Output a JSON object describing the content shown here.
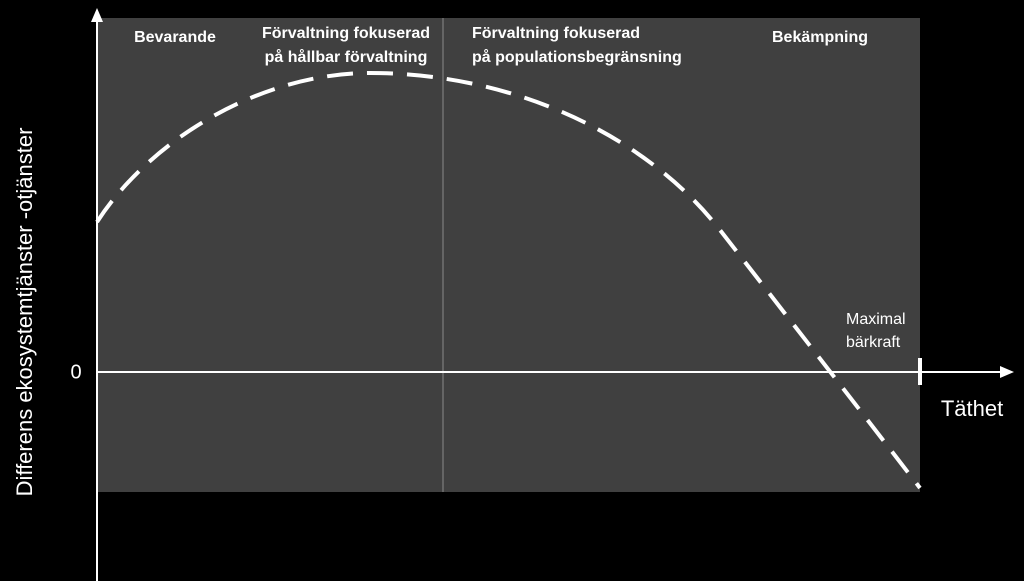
{
  "zones": [
    {
      "lines": [
        "Bevarande"
      ]
    },
    {
      "lines": [
        "Förvaltning fokuserad",
        "på hållbar förvaltning"
      ]
    },
    {
      "lines": [
        "Förvaltning fokuserad",
        "på populationsbegränsning"
      ]
    },
    {
      "lines": [
        "Bekämpning"
      ]
    }
  ],
  "y_axis_label": "Differens ekosystemtjänster -otjänster",
  "zero_label": "0",
  "x_axis_label": "Täthet",
  "annotation": {
    "lines": [
      "Maximal",
      "bärkraft"
    ]
  }
}
